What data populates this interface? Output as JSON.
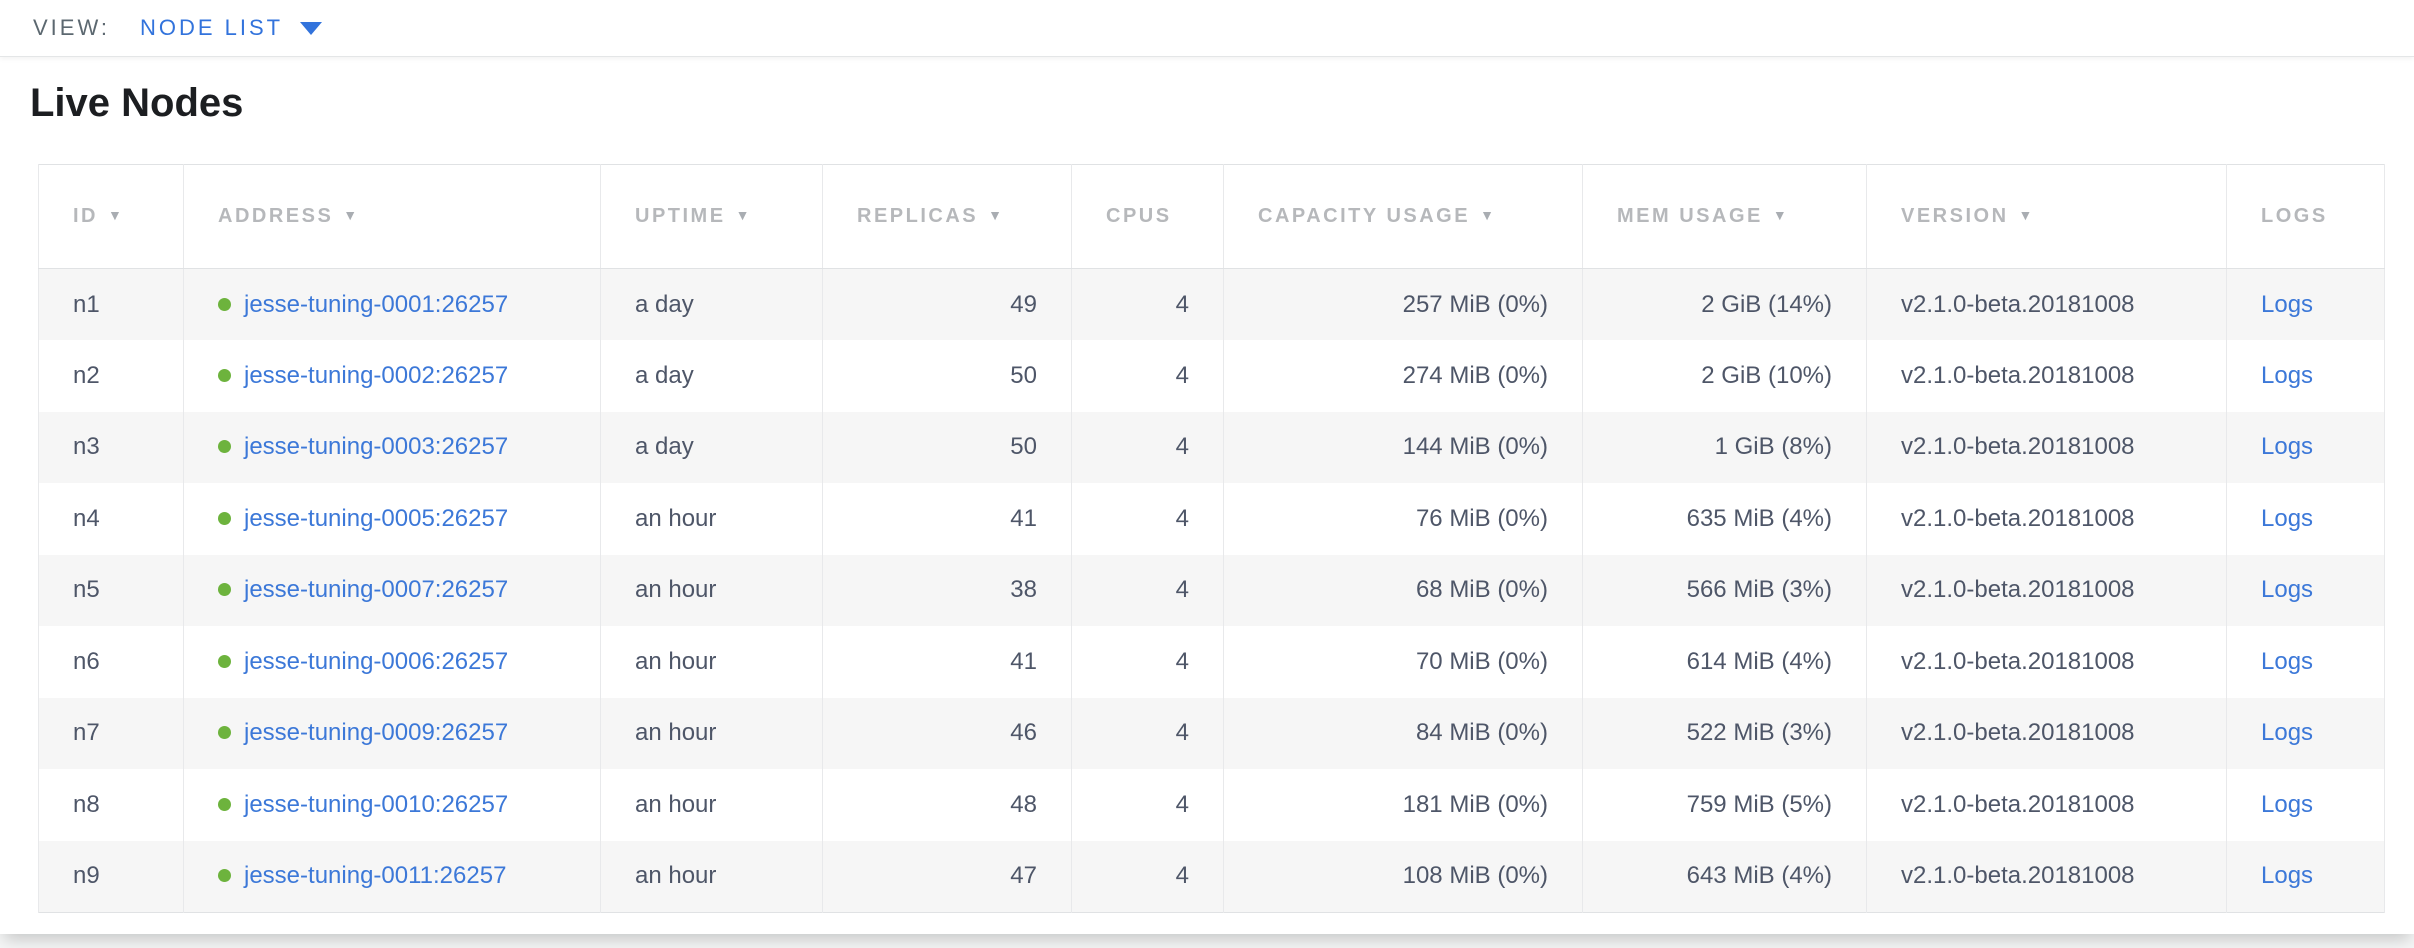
{
  "colors": {
    "nav_blue": "#3273dc",
    "link_blue": "#3c78d8",
    "node_healthy_green": "#6db33d",
    "header_gray": "#b6b8bb",
    "body_text": "#4e5668"
  },
  "view_bar": {
    "label": "VIEW:",
    "selected": "NODE LIST"
  },
  "icons": {
    "caret_down": "caret-down",
    "sort_desc": "▼",
    "node_status_dot": "healthy"
  },
  "page": {
    "title": "Live Nodes"
  },
  "table": {
    "columns": [
      {
        "key": "id",
        "label": "ID",
        "sorted": true
      },
      {
        "key": "address",
        "label": "ADDRESS",
        "sorted": true
      },
      {
        "key": "uptime",
        "label": "UPTIME",
        "sorted": true
      },
      {
        "key": "replicas",
        "label": "REPLICAS",
        "sorted": true
      },
      {
        "key": "cpus",
        "label": "CPUS",
        "sorted": false
      },
      {
        "key": "capacity",
        "label": "CAPACITY USAGE",
        "sorted": true
      },
      {
        "key": "mem",
        "label": "MEM USAGE",
        "sorted": true
      },
      {
        "key": "version",
        "label": "VERSION",
        "sorted": true
      },
      {
        "key": "logs",
        "label": "LOGS",
        "sorted": false
      }
    ],
    "rows": [
      {
        "id": "n1",
        "address": "jesse-tuning-0001:26257",
        "uptime": "a day",
        "replicas": "49",
        "cpus": "4",
        "capacity": "257 MiB (0%)",
        "mem": "2 GiB (14%)",
        "version": "v2.1.0-beta.20181008",
        "logs": "Logs"
      },
      {
        "id": "n2",
        "address": "jesse-tuning-0002:26257",
        "uptime": "a day",
        "replicas": "50",
        "cpus": "4",
        "capacity": "274 MiB (0%)",
        "mem": "2 GiB (10%)",
        "version": "v2.1.0-beta.20181008",
        "logs": "Logs"
      },
      {
        "id": "n3",
        "address": "jesse-tuning-0003:26257",
        "uptime": "a day",
        "replicas": "50",
        "cpus": "4",
        "capacity": "144 MiB (0%)",
        "mem": "1 GiB (8%)",
        "version": "v2.1.0-beta.20181008",
        "logs": "Logs"
      },
      {
        "id": "n4",
        "address": "jesse-tuning-0005:26257",
        "uptime": "an hour",
        "replicas": "41",
        "cpus": "4",
        "capacity": "76 MiB (0%)",
        "mem": "635 MiB (4%)",
        "version": "v2.1.0-beta.20181008",
        "logs": "Logs"
      },
      {
        "id": "n5",
        "address": "jesse-tuning-0007:26257",
        "uptime": "an hour",
        "replicas": "38",
        "cpus": "4",
        "capacity": "68 MiB (0%)",
        "mem": "566 MiB (3%)",
        "version": "v2.1.0-beta.20181008",
        "logs": "Logs"
      },
      {
        "id": "n6",
        "address": "jesse-tuning-0006:26257",
        "uptime": "an hour",
        "replicas": "41",
        "cpus": "4",
        "capacity": "70 MiB (0%)",
        "mem": "614 MiB (4%)",
        "version": "v2.1.0-beta.20181008",
        "logs": "Logs"
      },
      {
        "id": "n7",
        "address": "jesse-tuning-0009:26257",
        "uptime": "an hour",
        "replicas": "46",
        "cpus": "4",
        "capacity": "84 MiB (0%)",
        "mem": "522 MiB (3%)",
        "version": "v2.1.0-beta.20181008",
        "logs": "Logs"
      },
      {
        "id": "n8",
        "address": "jesse-tuning-0010:26257",
        "uptime": "an hour",
        "replicas": "48",
        "cpus": "4",
        "capacity": "181 MiB (0%)",
        "mem": "759 MiB (5%)",
        "version": "v2.1.0-beta.20181008",
        "logs": "Logs"
      },
      {
        "id": "n9",
        "address": "jesse-tuning-0011:26257",
        "uptime": "an hour",
        "replicas": "47",
        "cpus": "4",
        "capacity": "108 MiB (0%)",
        "mem": "643 MiB (4%)",
        "version": "v2.1.0-beta.20181008",
        "logs": "Logs"
      }
    ]
  }
}
